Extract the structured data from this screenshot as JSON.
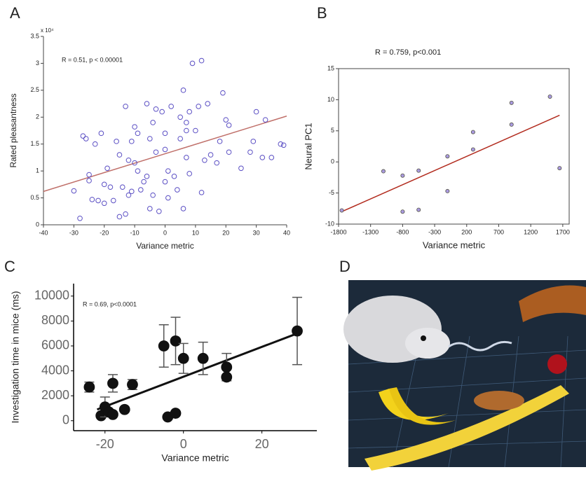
{
  "chart_data": [
    {
      "type": "scatter",
      "panel": "A",
      "annotation": "R = 0.51, p < 0.00001",
      "multiplier": "x 10⁴",
      "x_label": "Variance metric",
      "y_label": "Rated pleasantness",
      "xlim": [
        -40,
        40
      ],
      "xticks": [
        -40,
        -30,
        -20,
        -10,
        0,
        10,
        20,
        30,
        40
      ],
      "ylim": [
        0,
        3.5
      ],
      "yticks": [
        0,
        0.5,
        1,
        1.5,
        2,
        2.5,
        3,
        3.5
      ],
      "series": [
        {
          "color": "#5b4fc4",
          "x": [
            -30,
            -28,
            -27,
            -26,
            -25,
            -25,
            -24,
            -23,
            -22,
            -21,
            -20,
            -20,
            -19,
            -18,
            -17,
            -16,
            -15,
            -15,
            -14,
            -13,
            -13,
            -12,
            -12,
            -11,
            -11,
            -10,
            -10,
            -9,
            -9,
            -8,
            -7,
            -6,
            -6,
            -5,
            -5,
            -4,
            -4,
            -3,
            -3,
            -2,
            -1,
            0,
            0,
            0,
            1,
            1,
            2,
            3,
            4,
            5,
            5,
            6,
            6,
            7,
            7,
            7,
            8,
            8,
            9,
            10,
            11,
            12,
            12,
            13,
            14,
            15,
            17,
            18,
            19,
            20,
            21,
            21,
            25,
            28,
            29,
            30,
            32,
            33,
            35,
            38,
            39
          ],
          "values": [
            0.63,
            0.12,
            1.65,
            1.6,
            0.93,
            0.82,
            0.47,
            1.5,
            0.45,
            1.7,
            0.4,
            0.75,
            1.05,
            0.7,
            0.45,
            1.55,
            0.15,
            1.3,
            0.7,
            2.2,
            0.2,
            1.2,
            0.55,
            1.55,
            0.62,
            1.82,
            1.15,
            1.7,
            1.0,
            0.65,
            0.8,
            2.25,
            0.9,
            1.6,
            0.3,
            1.9,
            0.55,
            2.15,
            1.35,
            0.25,
            2.1,
            1.4,
            0.8,
            1.7,
            1.0,
            0.5,
            2.2,
            0.9,
            0.65,
            1.6,
            2.0,
            2.5,
            0.3,
            1.75,
            1.9,
            1.25,
            2.1,
            0.95,
            3.0,
            1.75,
            2.2,
            3.05,
            0.6,
            1.2,
            2.25,
            1.3,
            1.15,
            1.55,
            2.45,
            1.95,
            1.85,
            1.35,
            1.05,
            1.35,
            1.55,
            2.1,
            1.25,
            1.95,
            1.25,
            1.5,
            1.48
          ]
        }
      ],
      "fit": {
        "color": "#c0706a",
        "x": [
          -40,
          40
        ],
        "y": [
          0.62,
          2.02
        ]
      }
    },
    {
      "type": "scatter",
      "panel": "B",
      "annotation": "R = 0.759, p<0.001",
      "x_label": "Variance metric",
      "y_label": "Neural PC1",
      "xlim": [
        -1800,
        1800
      ],
      "xticks": [
        -1800,
        -1300,
        -800,
        -300,
        200,
        700,
        1200,
        1700
      ],
      "ylim": [
        -10,
        15
      ],
      "yticks": [
        -10,
        -5,
        0,
        5,
        10,
        15
      ],
      "series": [
        {
          "color": "#a99ae0",
          "x": [
            -1750,
            -1100,
            -800,
            -800,
            -550,
            -550,
            -100,
            -100,
            300,
            300,
            900,
            900,
            1500,
            1650
          ],
          "values": [
            -7.8,
            -1.5,
            -2.2,
            -8,
            -1.4,
            -7.7,
            0.9,
            -4.7,
            2,
            4.8,
            9.5,
            6,
            10.5,
            -1
          ]
        }
      ],
      "fit": {
        "color": "#b22b1e",
        "x": [
          -1750,
          1650
        ],
        "y": [
          -8,
          7.5
        ]
      }
    },
    {
      "type": "errorbar",
      "panel": "C",
      "annotation": "R = 0.69, p<0.0001",
      "x_label": "Variance metric",
      "y_label": "Investigation time in mice (ms)",
      "xlim": [
        -28,
        34
      ],
      "xticks": [
        -20,
        0,
        20
      ],
      "ylim": [
        -800,
        11000
      ],
      "yticks": [
        0,
        2000,
        4000,
        6000,
        8000,
        10000
      ],
      "series": [
        {
          "color": "#111111",
          "x": [
            -24,
            -21,
            -20,
            -19,
            -18,
            -18,
            -15,
            -13,
            -5,
            -4,
            -2,
            -2,
            0,
            5,
            11,
            11,
            29
          ],
          "values": [
            2700,
            400,
            1100,
            700,
            3000,
            500,
            900,
            2900,
            6000,
            300,
            6400,
            600,
            5000,
            5000,
            4300,
            3500,
            7200
          ],
          "errors": [
            400,
            null,
            800,
            null,
            700,
            null,
            null,
            400,
            1700,
            null,
            1900,
            null,
            1200,
            1300,
            1100,
            null,
            2700
          ]
        }
      ],
      "fit": {
        "color": "#111111",
        "x": [
          -22,
          29
        ],
        "y": [
          900,
          7000
        ]
      }
    },
    {
      "type": "image",
      "panel": "D"
    }
  ]
}
